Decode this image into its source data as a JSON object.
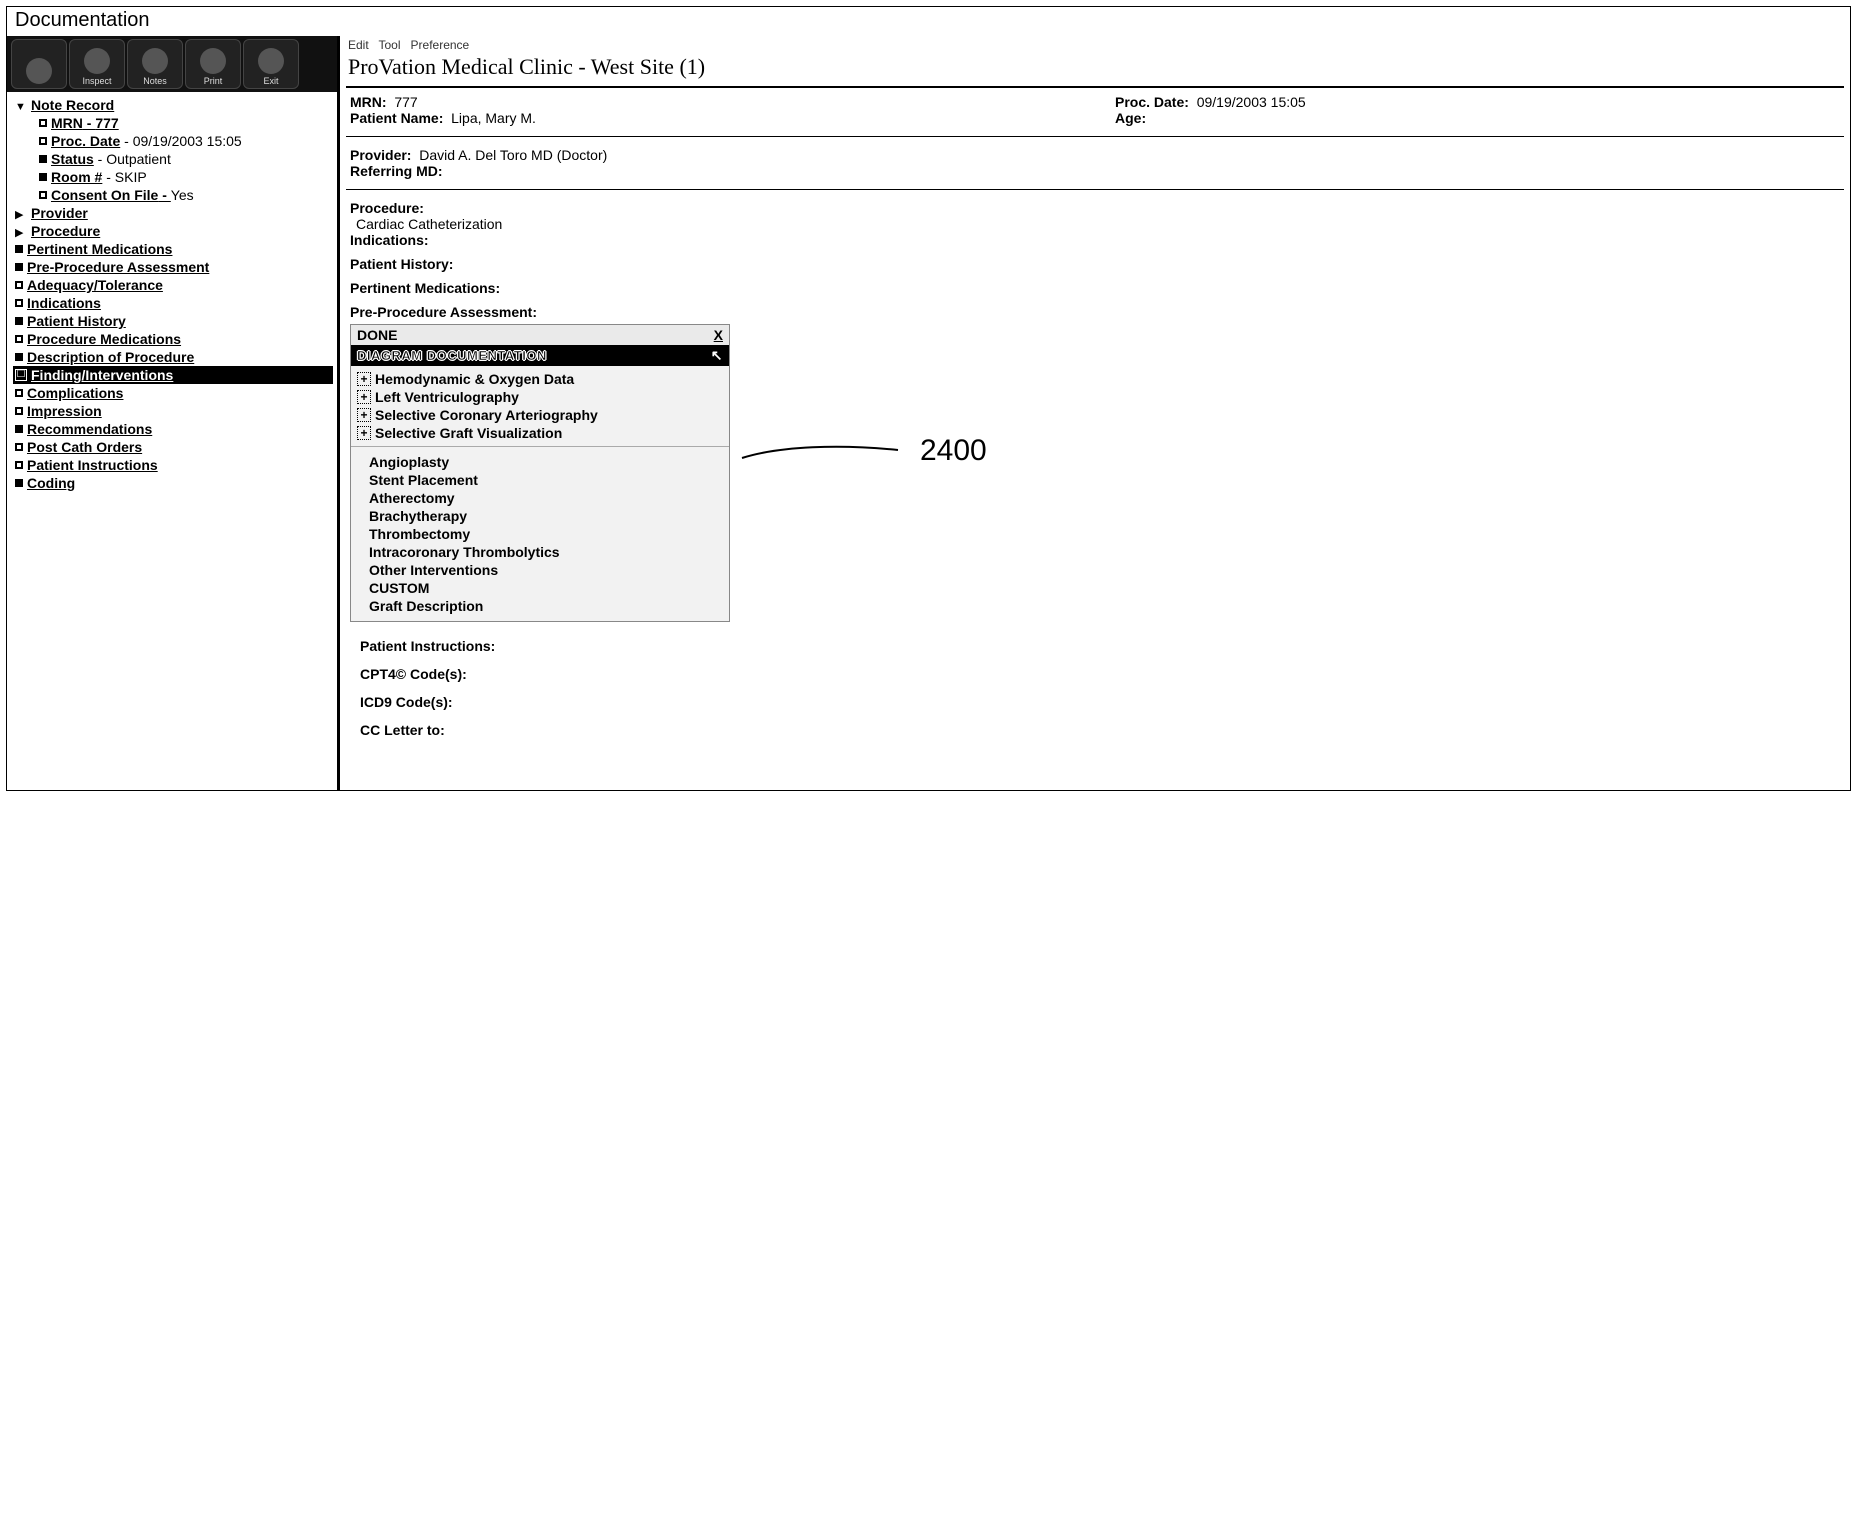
{
  "window": {
    "title": "Documentation"
  },
  "toolbar": {
    "buttons": [
      "",
      "Inspect",
      "Notes",
      "Print",
      "Exit"
    ]
  },
  "tree": {
    "root": {
      "label": "Note Record"
    },
    "record": [
      {
        "label": "MRN",
        "value": "777",
        "sep": " - "
      },
      {
        "label": "Proc. Date",
        "value": "09/19/2003 15:05",
        "sep": " - "
      },
      {
        "label": "Status",
        "value": "Outpatient",
        "sep": " - "
      },
      {
        "label": "Room #",
        "value": "SKIP",
        "sep": " - "
      },
      {
        "label": "Consent On File",
        "value": "Yes",
        "sep": " - "
      }
    ],
    "sections": [
      {
        "label": "Provider",
        "caret": "right",
        "bullet": "caret"
      },
      {
        "label": "Procedure",
        "caret": "right",
        "bullet": "caret"
      },
      {
        "label": "Pertinent Medications",
        "bullet": "square"
      },
      {
        "label": "Pre-Procedure Assessment",
        "bullet": "square"
      },
      {
        "label": "Adequacy/Tolerance",
        "bullet": "hollow"
      },
      {
        "label": "Indications",
        "bullet": "hollow"
      },
      {
        "label": "Patient History",
        "bullet": "square"
      },
      {
        "label": "Procedure Medications",
        "bullet": "hollow"
      },
      {
        "label": "Description of Procedure",
        "bullet": "square"
      },
      {
        "label": "Finding/Interventions",
        "bullet": "boxicon",
        "selected": true
      },
      {
        "label": "Complications",
        "bullet": "hollow"
      },
      {
        "label": "Impression",
        "bullet": "hollow"
      },
      {
        "label": "Recommendations",
        "bullet": "square"
      },
      {
        "label": "Post Cath Orders",
        "bullet": "hollow"
      },
      {
        "label": "Patient Instructions",
        "bullet": "hollow"
      },
      {
        "label": "Coding",
        "bullet": "square"
      }
    ]
  },
  "menubar": {
    "items": [
      "Edit",
      "Tool",
      "Preference"
    ]
  },
  "facility": "ProVation Medical Clinic - West Site (1)",
  "header": {
    "mrn_label": "MRN:",
    "mrn": "777",
    "patient_label": "Patient Name:",
    "patient": "Lipa, Mary M.",
    "procdate_label": "Proc. Date:",
    "procdate": "09/19/2003 15:05",
    "age_label": "Age:",
    "age": ""
  },
  "provider_block": {
    "provider_label": "Provider:",
    "provider": "David A. Del Toro MD (Doctor)",
    "referring_label": "Referring MD:",
    "referring": ""
  },
  "proc_block": {
    "procedure_label": "Procedure:",
    "procedure": "Cardiac Catheterization",
    "indications_label": "Indications:",
    "history_label": "Patient History:",
    "meds_label": "Pertinent Medications:",
    "preproc_label": "Pre-Procedure Assessment:"
  },
  "popup": {
    "done": "DONE",
    "close": "X",
    "title": "DIAGRAM DOCUMENTATION",
    "expandable": [
      "Hemodynamic & Oxygen Data",
      "Left Ventriculography",
      "Selective Coronary Arteriography",
      "Selective Graft Visualization"
    ],
    "sub": [
      "Angioplasty",
      "Stent Placement",
      "Atherectomy",
      "Brachytherapy",
      "Thrombectomy",
      "Intracoronary Thrombolytics",
      "Other Interventions",
      "CUSTOM",
      "Graft Description"
    ]
  },
  "footer": {
    "pi": "Patient Instructions:",
    "cpt": "CPT4© Code(s):",
    "icd": "ICD9 Code(s):",
    "cc": "CC Letter to:"
  },
  "annotation": {
    "label": "2400"
  }
}
